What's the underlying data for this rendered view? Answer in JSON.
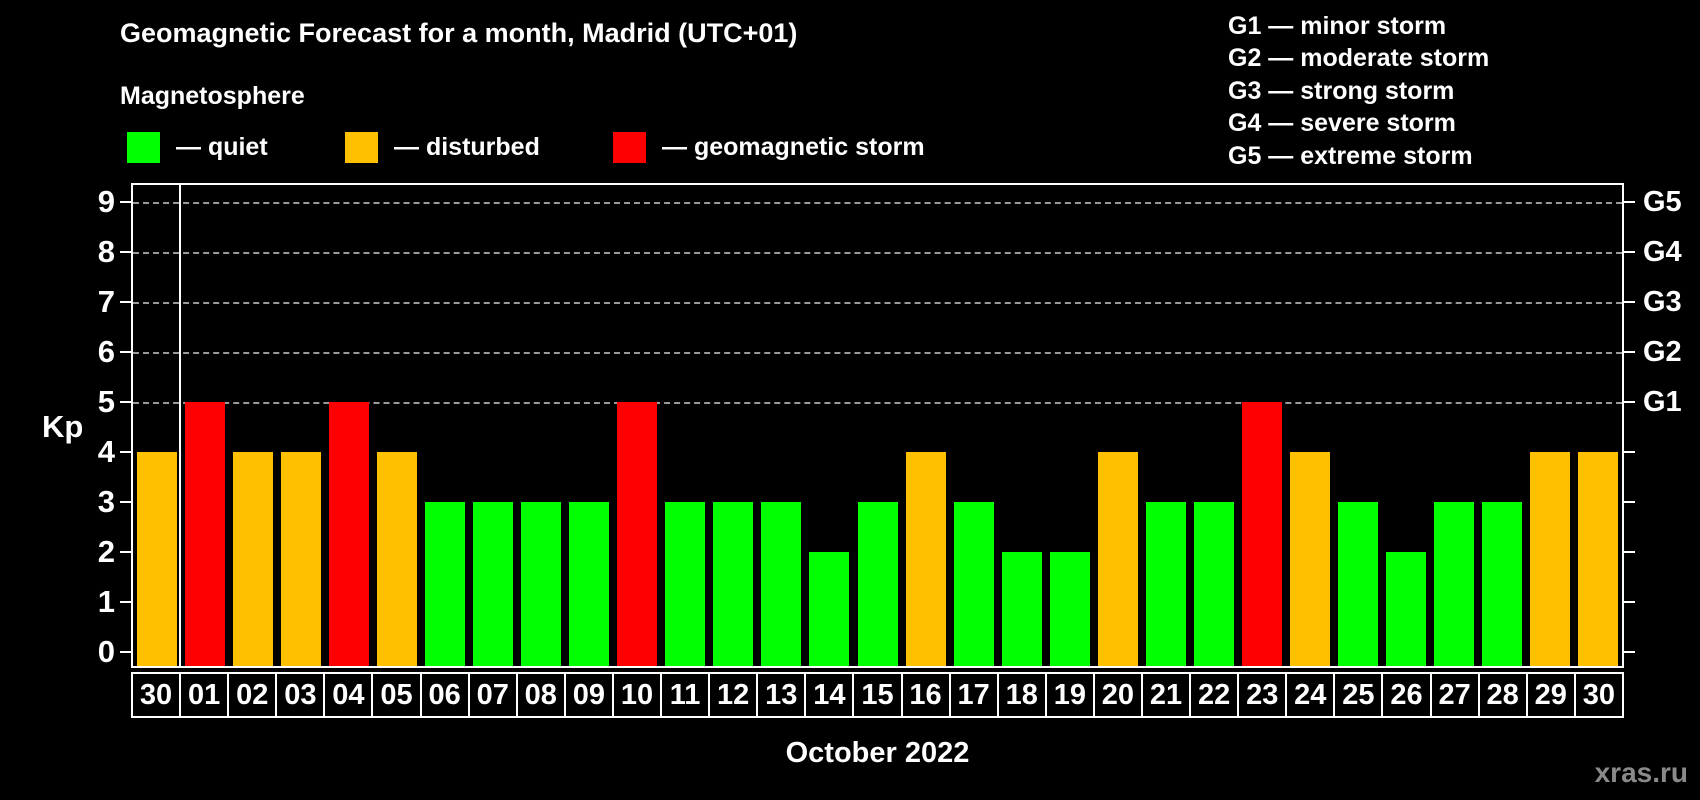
{
  "header": {
    "title": "Geomagnetic Forecast for a month, Madrid (UTC+01)",
    "subtitle": "Magnetosphere"
  },
  "kp_legend": [
    {
      "status": "quiet",
      "label": "— quiet",
      "color": "#00ff00"
    },
    {
      "status": "disturbed",
      "label": "— disturbed",
      "color": "#ffc000"
    },
    {
      "status": "storm",
      "label": "— geomagnetic storm",
      "color": "#ff0000"
    }
  ],
  "g_scale_legend": [
    "G1 — minor storm",
    "G2 — moderate storm",
    "G3 — strong storm",
    "G4 — severe storm",
    "G5 — extreme storm"
  ],
  "axes": {
    "y_title": "Kp",
    "y_ticks": [
      0,
      1,
      2,
      3,
      4,
      5,
      6,
      7,
      8,
      9
    ],
    "right_labels": [
      {
        "level": 5,
        "label": "G1"
      },
      {
        "level": 6,
        "label": "G2"
      },
      {
        "level": 7,
        "label": "G3"
      },
      {
        "level": 8,
        "label": "G4"
      },
      {
        "level": 9,
        "label": "G5"
      }
    ],
    "x_title": "October 2022"
  },
  "footer": {
    "watermark": "xras.ru"
  },
  "chart_data": {
    "type": "bar",
    "title": "Geomagnetic Forecast for a month, Madrid (UTC+01)",
    "xlabel": "October 2022",
    "ylabel": "Kp",
    "ylim": [
      0,
      9.4
    ],
    "grid": "dashed horizontal at Kp 5-9",
    "grid_levels": [
      5,
      6,
      7,
      8,
      9
    ],
    "categories": [
      "30",
      "01",
      "02",
      "03",
      "04",
      "05",
      "06",
      "07",
      "08",
      "09",
      "10",
      "11",
      "12",
      "13",
      "14",
      "15",
      "16",
      "17",
      "18",
      "19",
      "20",
      "21",
      "22",
      "23",
      "24",
      "25",
      "26",
      "27",
      "28",
      "29",
      "30"
    ],
    "values": [
      4,
      5,
      4,
      4,
      5,
      4,
      3,
      3,
      3,
      3,
      5,
      3,
      3,
      3,
      2,
      3,
      4,
      3,
      2,
      2,
      4,
      3,
      3,
      5,
      4,
      3,
      2,
      3,
      3,
      4,
      4
    ],
    "month_separator_after_index": 0,
    "color_rules": {
      "quiet_max_kp": 3,
      "disturbed_kp": 4,
      "storm_min_kp": 5
    },
    "colors": {
      "quiet": "#00ff00",
      "disturbed": "#ffc000",
      "storm": "#ff0000"
    }
  }
}
